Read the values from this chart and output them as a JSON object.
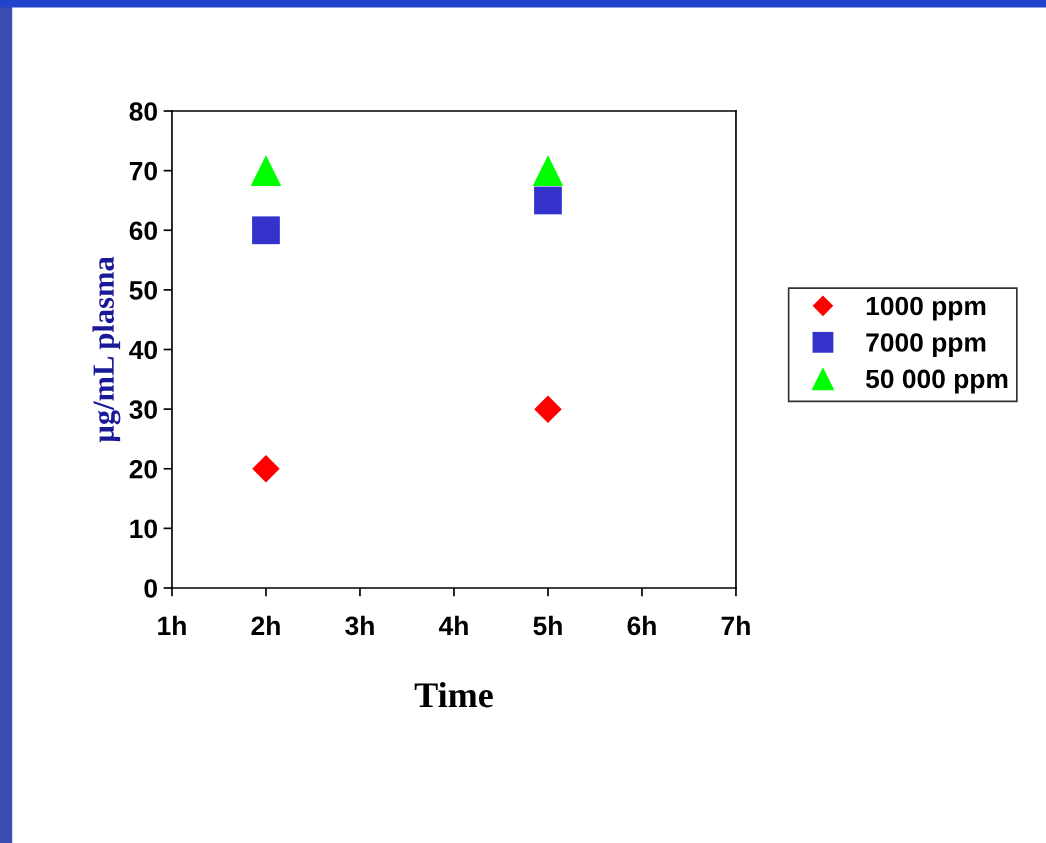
{
  "chart_data": {
    "type": "scatter",
    "xlabel": "Time",
    "ylabel": "µg/mL plasma",
    "x": [
      2,
      5
    ],
    "series": [
      {
        "name": "1000 ppm",
        "color": "#ff0000",
        "marker": "diamond",
        "values": [
          20,
          30
        ]
      },
      {
        "name": "7000 ppm",
        "color": "#3333cc",
        "marker": "square",
        "values": [
          60,
          65
        ]
      },
      {
        "name": "50 000 ppm",
        "color": "#00ff00",
        "marker": "triangle",
        "values": [
          70,
          70
        ]
      }
    ],
    "xlim": [
      1,
      7
    ],
    "xticks": [
      {
        "value": 1,
        "label": "1h"
      },
      {
        "value": 2,
        "label": "2h"
      },
      {
        "value": 3,
        "label": "3h"
      },
      {
        "value": 4,
        "label": "4h"
      },
      {
        "value": 5,
        "label": "5h"
      },
      {
        "value": 6,
        "label": "6h"
      },
      {
        "value": 7,
        "label": "7h"
      }
    ],
    "ylim": [
      0,
      80
    ],
    "yticks": [
      0,
      10,
      20,
      30,
      40,
      50,
      60,
      70,
      80
    ],
    "grid": false,
    "legend": "right"
  }
}
